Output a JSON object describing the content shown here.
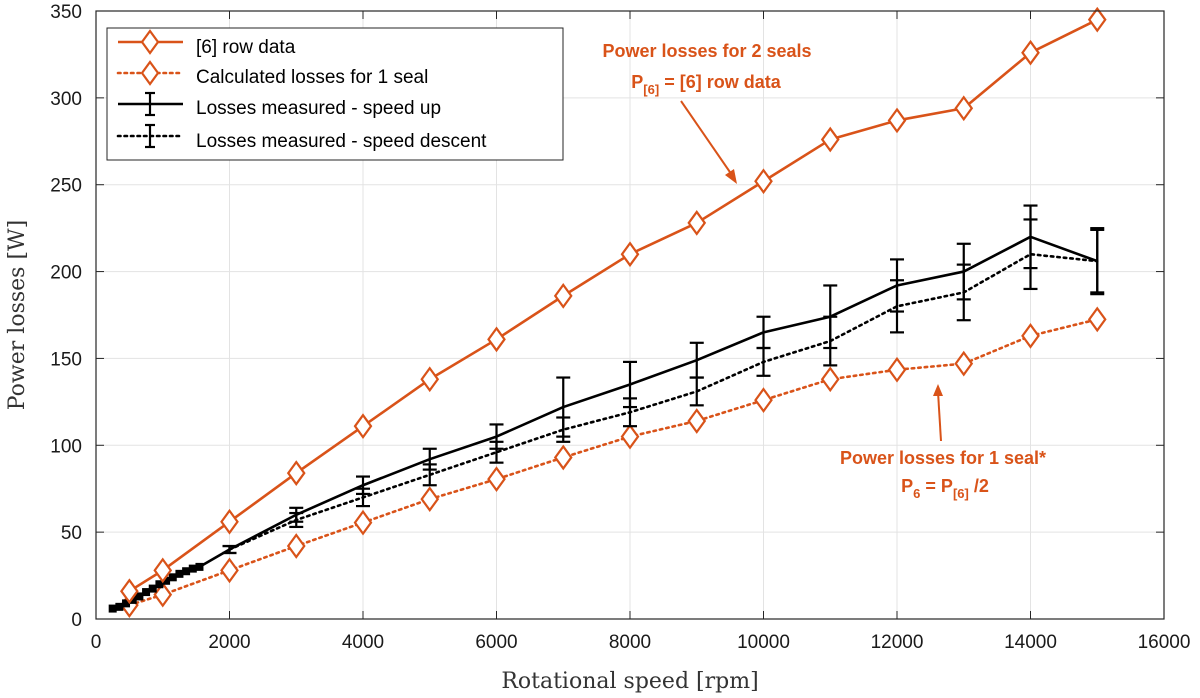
{
  "chart_data": {
    "type": "line",
    "title": "",
    "xlabel": "Rotational speed [rpm]",
    "ylabel": "Power losses [W]",
    "xlim": [
      0,
      16000
    ],
    "ylim": [
      0,
      350
    ],
    "xticks": [
      0,
      2000,
      4000,
      6000,
      8000,
      10000,
      12000,
      14000,
      16000
    ],
    "yticks": [
      0,
      50,
      100,
      150,
      200,
      250,
      300,
      350
    ],
    "grid": true,
    "legend_position": "top-left",
    "series": [
      {
        "name": "[6] row data",
        "style": "solid",
        "marker": "diamond",
        "color": "#D95319",
        "x": [
          500,
          1000,
          2000,
          3000,
          4000,
          5000,
          6000,
          7000,
          8000,
          9000,
          10000,
          11000,
          12000,
          13000,
          14000,
          15000
        ],
        "y": [
          16,
          28,
          56,
          84,
          111,
          138,
          161,
          186,
          210,
          228,
          252,
          276,
          287,
          294,
          326,
          345
        ]
      },
      {
        "name": "Calculated losses for 1 seal",
        "style": "dotted",
        "marker": "diamond",
        "color": "#D95319",
        "x": [
          500,
          1000,
          2000,
          3000,
          4000,
          5000,
          6000,
          7000,
          8000,
          9000,
          10000,
          11000,
          12000,
          13000,
          14000,
          15000
        ],
        "y": [
          8,
          14,
          28,
          42,
          55.5,
          69,
          80.5,
          93,
          105,
          114,
          126,
          138,
          143.5,
          147,
          163,
          172.5
        ]
      },
      {
        "name": "Losses measured - speed up",
        "style": "solid",
        "marker": "errorbar",
        "color": "#000000",
        "x": [
          250,
          350,
          450,
          550,
          650,
          750,
          850,
          950,
          1050,
          1150,
          1250,
          1350,
          1450,
          1550,
          2000,
          3000,
          4000,
          5000,
          6000,
          7000,
          8000,
          9000,
          10000,
          11000,
          12000,
          13000,
          14000,
          15000
        ],
        "y": [
          6,
          7,
          9,
          11,
          13,
          15.5,
          17.5,
          20,
          22,
          24,
          26,
          27.5,
          29,
          30,
          40,
          60,
          77,
          92,
          105,
          122,
          135,
          149,
          165,
          174,
          192,
          200,
          220,
          206
        ],
        "err": [
          0,
          0,
          0,
          0,
          0,
          0,
          0,
          0,
          0,
          0,
          0,
          0,
          0,
          0,
          2,
          4,
          5,
          6,
          7,
          17,
          13,
          10,
          9,
          18,
          15,
          16,
          18,
          19
        ]
      },
      {
        "name": "Losses measured - speed descent",
        "style": "dotted",
        "marker": "errorbar",
        "color": "#000000",
        "x": [
          2000,
          3000,
          4000,
          5000,
          6000,
          7000,
          8000,
          9000,
          10000,
          11000,
          12000,
          13000,
          14000,
          15000
        ],
        "y": [
          40,
          57,
          70,
          83,
          96,
          109,
          119,
          131,
          148,
          160,
          180,
          188,
          210,
          206
        ],
        "err": [
          2,
          4,
          5,
          6,
          6,
          7,
          8,
          8,
          8,
          14,
          15,
          16,
          20,
          18
        ]
      }
    ],
    "annotations": [
      {
        "lines": [
          "Power losses for 2 seals",
          "P[6] = [6] row data"
        ],
        "color": "#D95319",
        "arrow_to": [
          9800,
          250
        ]
      },
      {
        "lines": [
          "Power losses for 1 seal*",
          "P6 = P[6] /2"
        ],
        "color": "#D95319",
        "arrow_to": [
          12700,
          135
        ]
      }
    ],
    "annotation_text": {
      "a1_line1": "Power losses for 2 seals",
      "a1_P": "P",
      "a1_sub": "[6]",
      "a1_rest": " = [6] row data",
      "a2_line1": "Power losses for 1 seal*",
      "a2_P1": "P",
      "a2_sub1": "6",
      "a2_mid": " = P",
      "a2_sub2": "[6]",
      "a2_end": " /2"
    }
  }
}
